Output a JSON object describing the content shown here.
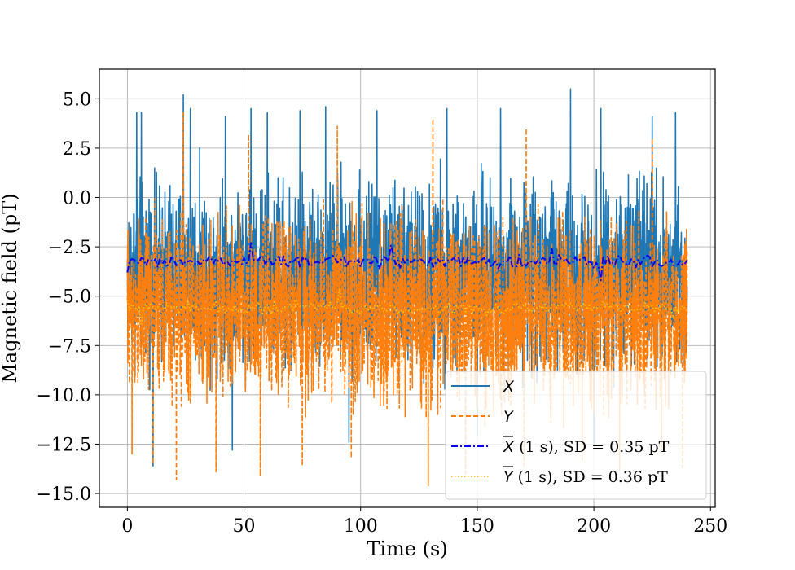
{
  "chart_data": {
    "type": "line",
    "title": "",
    "xlabel": "Time (s)",
    "ylabel": "Magnetic field (pT)",
    "xlim": [
      -12,
      252
    ],
    "ylim": [
      -15.7,
      6.5
    ],
    "xticks": [
      0,
      50,
      100,
      150,
      200,
      250
    ],
    "yticks": [
      5.0,
      2.5,
      0.0,
      -2.5,
      -5.0,
      -7.5,
      -10.0,
      -12.5,
      -15.0
    ],
    "xtick_labels": [
      "0",
      "50",
      "100",
      "150",
      "200",
      "250"
    ],
    "ytick_labels": [
      "5.0",
      "2.5",
      "0.0",
      "−2.5",
      "−5.0",
      "−7.5",
      "−10.0",
      "−12.5",
      "−15.0"
    ],
    "grid": true,
    "legend_position": "lower-right",
    "series": [
      {
        "name": "X",
        "label_var": "X",
        "label_suffix": "",
        "style": "solid",
        "color": "#1f77b4",
        "kind": "raw",
        "t_range": [
          0,
          240
        ],
        "envelope_typical": [
          -10.5,
          2.7
        ],
        "spikes_max": [
          [
            4,
            4.3
          ],
          [
            6,
            4.3
          ],
          [
            24,
            5.2
          ],
          [
            27,
            4.5
          ],
          [
            42,
            4.1
          ],
          [
            53,
            4.5
          ],
          [
            60,
            4.3
          ],
          [
            74,
            4.4
          ],
          [
            85,
            4.6
          ],
          [
            107,
            4.4
          ],
          [
            137,
            4.5
          ],
          [
            160,
            4.5
          ],
          [
            190,
            5.5
          ],
          [
            203,
            4.5
          ],
          [
            225,
            4.1
          ],
          [
            235,
            4.3
          ]
        ],
        "spikes_min": [
          [
            11,
            -13.6
          ],
          [
            45,
            -12.8
          ],
          [
            95,
            -12.4
          ],
          [
            150,
            -12.1
          ],
          [
            200,
            -12.6
          ]
        ]
      },
      {
        "name": "Y",
        "label_var": "Y",
        "label_suffix": "",
        "style": "dashed",
        "color": "#ff7f0e",
        "kind": "raw",
        "t_range": [
          0,
          240
        ],
        "envelope_typical": [
          -12.3,
          0.8
        ],
        "spikes_max": [
          [
            24,
            4.3
          ],
          [
            52,
            3.2
          ],
          [
            90,
            3.6
          ],
          [
            131,
            4.0
          ],
          [
            171,
            3.5
          ],
          [
            225,
            3.0
          ]
        ],
        "spikes_min": [
          [
            2,
            -13.0
          ],
          [
            11,
            -13.5
          ],
          [
            21,
            -14.3
          ],
          [
            38,
            -13.9
          ],
          [
            57,
            -14.1
          ],
          [
            75,
            -13.6
          ],
          [
            96,
            -13.2
          ],
          [
            129,
            -14.6
          ],
          [
            145,
            -14.0
          ],
          [
            170,
            -13.6
          ],
          [
            195,
            -13.3
          ],
          [
            211,
            -13.8
          ],
          [
            229,
            -12.8
          ],
          [
            238,
            -13.7
          ]
        ]
      },
      {
        "name": "X-bar",
        "label_var": "X",
        "label_suffix": " (1 s), SD = 0.35 pT",
        "style": "dashdot",
        "color": "#0000ff",
        "kind": "mean",
        "mean": -3.25,
        "sd": 0.35,
        "t_range": [
          0,
          240
        ],
        "start_value": -3.8,
        "extremes": [
          [
            53,
            -2.3
          ],
          [
            113,
            -2.4
          ],
          [
            182,
            -2.6
          ],
          [
            203,
            -4.2
          ]
        ]
      },
      {
        "name": "Y-bar",
        "label_var": "Y",
        "label_suffix": " (1 s), SD = 0.36 pT",
        "style": "dotted",
        "color": "#ffbf00",
        "kind": "mean",
        "mean": -5.6,
        "sd": 0.36,
        "t_range": [
          0,
          240
        ],
        "start_value": -5.2,
        "extremes": [
          [
            91,
            -4.6
          ],
          [
            6,
            -6.4
          ],
          [
            234,
            -6.1
          ]
        ]
      }
    ]
  }
}
